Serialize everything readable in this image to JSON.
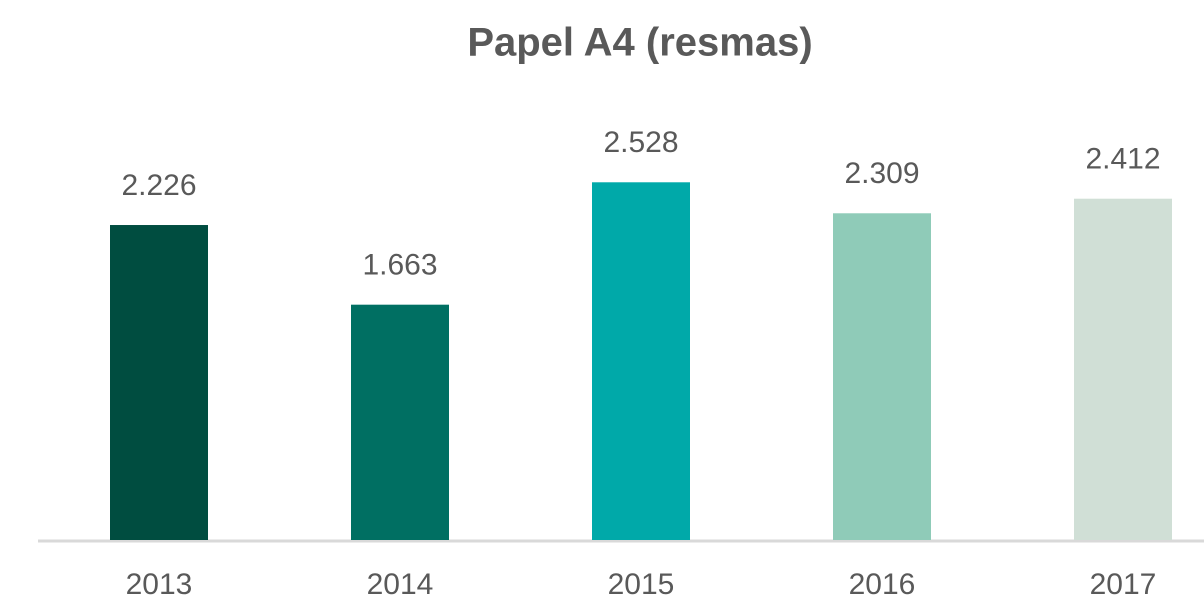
{
  "chart_data": {
    "type": "bar",
    "title": "Papel A4 (resmas)",
    "categories": [
      "2013",
      "2014",
      "2015",
      "2016",
      "2017"
    ],
    "values": [
      2226,
      1663,
      2528,
      2309,
      2412
    ],
    "value_labels": [
      "2.226",
      "1.663",
      "2.528",
      "2.309",
      "2.412"
    ],
    "colors": [
      "#004d40",
      "#006f62",
      "#00a9a9",
      "#8fcbb8",
      "#d0dfd6"
    ],
    "ylim": [
      0,
      3000
    ]
  }
}
